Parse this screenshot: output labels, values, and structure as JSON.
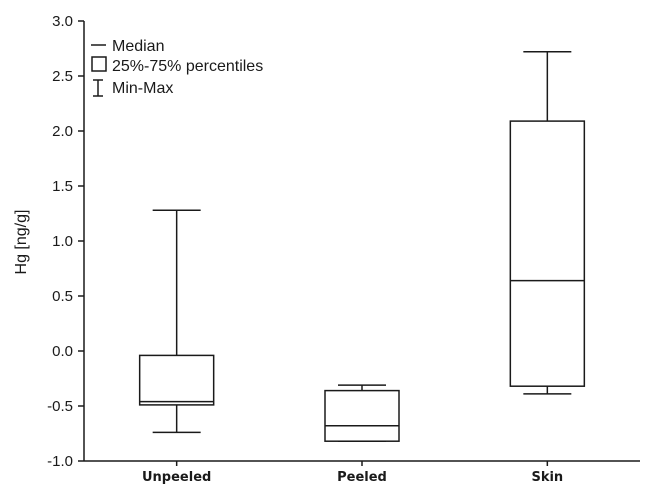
{
  "chart_data": {
    "type": "box",
    "ylabel": "Hg [ng/g]",
    "xlabel": "",
    "ylim": [
      -1.0,
      3.0
    ],
    "yticks": [
      -1.0,
      -0.5,
      0.0,
      0.5,
      1.0,
      1.5,
      2.0,
      2.5,
      3.0
    ],
    "ytick_labels": [
      "-1.0",
      "-0.5",
      "0.0",
      "0.5",
      "1.0",
      "1.5",
      "2.0",
      "2.5",
      "3.0"
    ],
    "grid": false,
    "legend_position": "top-left",
    "legend": [
      {
        "symbol": "median",
        "label": "Median"
      },
      {
        "symbol": "box",
        "label": "25%-75% percentiles"
      },
      {
        "symbol": "whisker",
        "label": "Min-Max"
      }
    ],
    "categories": [
      "Unpeeled",
      "Peeled",
      "Skin"
    ],
    "boxes": [
      {
        "category": "Unpeeled",
        "min": -0.74,
        "q1": -0.49,
        "median": -0.46,
        "q3": -0.04,
        "max": 1.28
      },
      {
        "category": "Peeled",
        "min": -0.82,
        "q1": -0.82,
        "median": -0.68,
        "q3": -0.36,
        "max": -0.31
      },
      {
        "category": "Skin",
        "min": -0.39,
        "q1": -0.32,
        "median": 0.64,
        "q3": 2.09,
        "max": 2.72
      }
    ]
  }
}
